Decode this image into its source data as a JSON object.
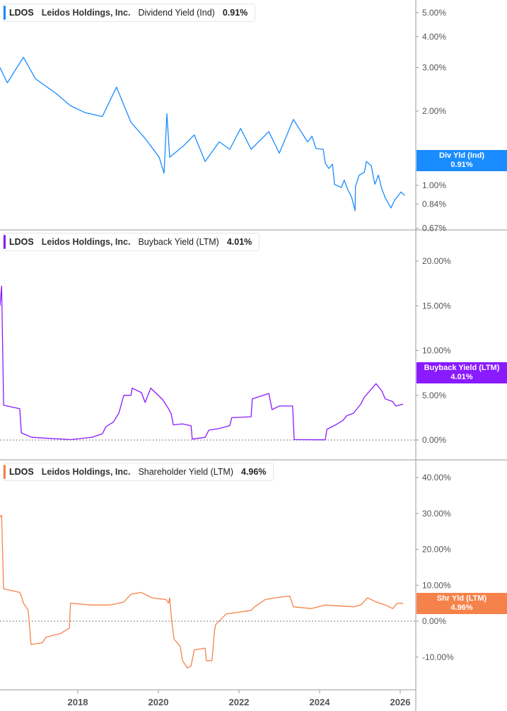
{
  "legends": [
    {
      "ticker": "LDOS",
      "company": "Leidos Holdings, Inc.",
      "metric": "Dividend Yield (Ind)",
      "value": "0.91%"
    },
    {
      "ticker": "LDOS",
      "company": "Leidos Holdings, Inc.",
      "metric": "Buyback Yield (LTM)",
      "value": "4.01%"
    },
    {
      "ticker": "LDOS",
      "company": "Leidos Holdings, Inc.",
      "metric": "Shareholder Yield (LTM)",
      "value": "4.96%"
    }
  ],
  "flags": [
    {
      "label": "Div Yld (Ind)",
      "value": "0.91%"
    },
    {
      "label": "Buyback Yield (LTM)",
      "value": "4.01%"
    },
    {
      "label": "Shr Yld (LTM)",
      "value": "4.96%"
    }
  ],
  "chart_data": [
    {
      "type": "line",
      "scale": "log",
      "color": "#1a8cff",
      "xlim": [
        2016.07,
        2026.39
      ],
      "ylim": [
        0.67,
        5.5
      ],
      "yticks": [
        "5.00%",
        "4.00%",
        "3.00%",
        "2.00%",
        "1.00%",
        "0.84%",
        "0.67%"
      ],
      "ytick_values": [
        5,
        4,
        3,
        2,
        1,
        0.84,
        0.67
      ],
      "series": [
        {
          "name": "Div Yld (Ind)",
          "points": [
            [
              2016.07,
              3.0
            ],
            [
              2016.25,
              2.6
            ],
            [
              2016.65,
              3.3
            ],
            [
              2016.95,
              2.7
            ],
            [
              2017.47,
              2.35
            ],
            [
              2017.82,
              2.1
            ],
            [
              2018.18,
              1.97
            ],
            [
              2018.61,
              1.9
            ],
            [
              2018.96,
              2.5
            ],
            [
              2019.32,
              1.8
            ],
            [
              2019.67,
              1.55
            ],
            [
              2020.02,
              1.3
            ],
            [
              2020.14,
              1.12
            ],
            [
              2020.21,
              1.95
            ],
            [
              2020.28,
              1.3
            ],
            [
              2020.63,
              1.45
            ],
            [
              2020.89,
              1.6
            ],
            [
              2021.16,
              1.25
            ],
            [
              2021.51,
              1.5
            ],
            [
              2021.77,
              1.4
            ],
            [
              2022.04,
              1.7
            ],
            [
              2022.3,
              1.4
            ],
            [
              2022.74,
              1.65
            ],
            [
              2023.0,
              1.35
            ],
            [
              2023.35,
              1.85
            ],
            [
              2023.7,
              1.5
            ],
            [
              2023.81,
              1.58
            ],
            [
              2023.91,
              1.41
            ],
            [
              2024.09,
              1.4
            ],
            [
              2024.14,
              1.23
            ],
            [
              2024.23,
              1.17
            ],
            [
              2024.32,
              1.22
            ],
            [
              2024.37,
              1.01
            ],
            [
              2024.54,
              0.98
            ],
            [
              2024.61,
              1.05
            ],
            [
              2024.7,
              0.96
            ],
            [
              2024.79,
              0.9
            ],
            [
              2024.88,
              0.79
            ],
            [
              2024.89,
              0.99
            ],
            [
              2024.98,
              1.1
            ],
            [
              2025.11,
              1.13
            ],
            [
              2025.16,
              1.25
            ],
            [
              2025.28,
              1.2
            ],
            [
              2025.37,
              1.01
            ],
            [
              2025.46,
              1.1
            ],
            [
              2025.54,
              0.97
            ],
            [
              2025.63,
              0.89
            ],
            [
              2025.77,
              0.81
            ],
            [
              2025.86,
              0.87
            ],
            [
              2026.02,
              0.94
            ],
            [
              2026.11,
              0.91
            ]
          ]
        }
      ]
    },
    {
      "type": "line",
      "scale": "linear",
      "color": "#8a1aff",
      "xlim": [
        2016.07,
        2026.39
      ],
      "ylim": [
        -0.5,
        23
      ],
      "yticks": [
        "20.00%",
        "15.00%",
        "10.00%",
        "5.00%",
        "0.00%"
      ],
      "ytick_values": [
        20,
        15,
        10,
        5,
        0
      ],
      "zero_line": true,
      "series": [
        {
          "name": "Buyback Yield (LTM)",
          "points": [
            [
              2016.07,
              15
            ],
            [
              2016.11,
              17.2
            ],
            [
              2016.16,
              3.9
            ],
            [
              2016.56,
              3.5
            ],
            [
              2016.6,
              0.8
            ],
            [
              2016.86,
              0.3
            ],
            [
              2017.82,
              0.05
            ],
            [
              2018.35,
              0.3
            ],
            [
              2018.61,
              0.7
            ],
            [
              2018.7,
              1.5
            ],
            [
              2018.88,
              2.0
            ],
            [
              2019.02,
              3.0
            ],
            [
              2019.14,
              5.0
            ],
            [
              2019.32,
              5.0
            ],
            [
              2019.35,
              5.8
            ],
            [
              2019.58,
              5.3
            ],
            [
              2019.67,
              4.2
            ],
            [
              2019.81,
              5.8
            ],
            [
              2020.11,
              4.5
            ],
            [
              2020.25,
              3.5
            ],
            [
              2020.32,
              2.9
            ],
            [
              2020.37,
              1.7
            ],
            [
              2020.6,
              1.8
            ],
            [
              2020.81,
              1.6
            ],
            [
              2020.84,
              0.1
            ],
            [
              2021.16,
              0.3
            ],
            [
              2021.25,
              1.1
            ],
            [
              2021.51,
              1.3
            ],
            [
              2021.77,
              1.6
            ],
            [
              2021.82,
              2.5
            ],
            [
              2022.3,
              2.6
            ],
            [
              2022.33,
              4.6
            ],
            [
              2022.74,
              5.2
            ],
            [
              2022.82,
              3.4
            ],
            [
              2023.0,
              3.8
            ],
            [
              2023.33,
              3.8
            ],
            [
              2023.37,
              0.05
            ],
            [
              2024.14,
              0.02
            ],
            [
              2024.18,
              1.2
            ],
            [
              2024.4,
              1.7
            ],
            [
              2024.58,
              2.2
            ],
            [
              2024.67,
              2.7
            ],
            [
              2024.84,
              3.0
            ],
            [
              2025.02,
              4.0
            ],
            [
              2025.11,
              4.8
            ],
            [
              2025.4,
              6.3
            ],
            [
              2025.54,
              5.5
            ],
            [
              2025.63,
              4.6
            ],
            [
              2025.81,
              4.3
            ],
            [
              2025.89,
              3.8
            ],
            [
              2026.07,
              4.01
            ]
          ]
        }
      ]
    },
    {
      "type": "line",
      "scale": "linear",
      "color": "#f5824a",
      "xlim": [
        2016.07,
        2026.39
      ],
      "ylim": [
        -19,
        46
      ],
      "yticks": [
        "40.00%",
        "30.00%",
        "20.00%",
        "10.00%",
        "0.00%",
        "-10.00%"
      ],
      "ytick_values": [
        40,
        30,
        20,
        10,
        0,
        -10
      ],
      "zero_line": true,
      "xticks": [
        "2018",
        "2020",
        "2022",
        "2024",
        "2026"
      ],
      "xtick_values": [
        2018,
        2020,
        2022,
        2024,
        2026
      ],
      "series": [
        {
          "name": "Shr Yld (LTM)",
          "points": [
            [
              2016.07,
              29
            ],
            [
              2016.11,
              29.5
            ],
            [
              2016.16,
              9
            ],
            [
              2016.56,
              8
            ],
            [
              2016.6,
              7
            ],
            [
              2016.65,
              5
            ],
            [
              2016.77,
              3
            ],
            [
              2016.84,
              -6.5
            ],
            [
              2017.12,
              -6
            ],
            [
              2017.21,
              -4.5
            ],
            [
              2017.56,
              -3.5
            ],
            [
              2017.79,
              -2
            ],
            [
              2017.82,
              5
            ],
            [
              2018.35,
              4.5
            ],
            [
              2018.79,
              4.5
            ],
            [
              2019.14,
              5.3
            ],
            [
              2019.32,
              7.5
            ],
            [
              2019.58,
              8
            ],
            [
              2019.84,
              6.5
            ],
            [
              2020.19,
              6
            ],
            [
              2020.25,
              5
            ],
            [
              2020.28,
              6.5
            ],
            [
              2020.33,
              0
            ],
            [
              2020.39,
              -5
            ],
            [
              2020.54,
              -7
            ],
            [
              2020.6,
              -11
            ],
            [
              2020.72,
              -13
            ],
            [
              2020.81,
              -12.5
            ],
            [
              2020.89,
              -8
            ],
            [
              2021.16,
              -7.5
            ],
            [
              2021.19,
              -11
            ],
            [
              2021.33,
              -11
            ],
            [
              2021.39,
              -3
            ],
            [
              2021.42,
              -1
            ],
            [
              2021.68,
              2
            ],
            [
              2022.3,
              3
            ],
            [
              2022.39,
              4
            ],
            [
              2022.65,
              6
            ],
            [
              2022.91,
              6.5
            ],
            [
              2023.26,
              7
            ],
            [
              2023.35,
              4
            ],
            [
              2023.79,
              3.5
            ],
            [
              2024.14,
              4.5
            ],
            [
              2024.84,
              4
            ],
            [
              2025.02,
              4.5
            ],
            [
              2025.19,
              6.5
            ],
            [
              2025.37,
              5.5
            ],
            [
              2025.63,
              4.5
            ],
            [
              2025.81,
              3.5
            ],
            [
              2025.93,
              5
            ],
            [
              2026.07,
              4.96
            ]
          ]
        }
      ]
    }
  ]
}
